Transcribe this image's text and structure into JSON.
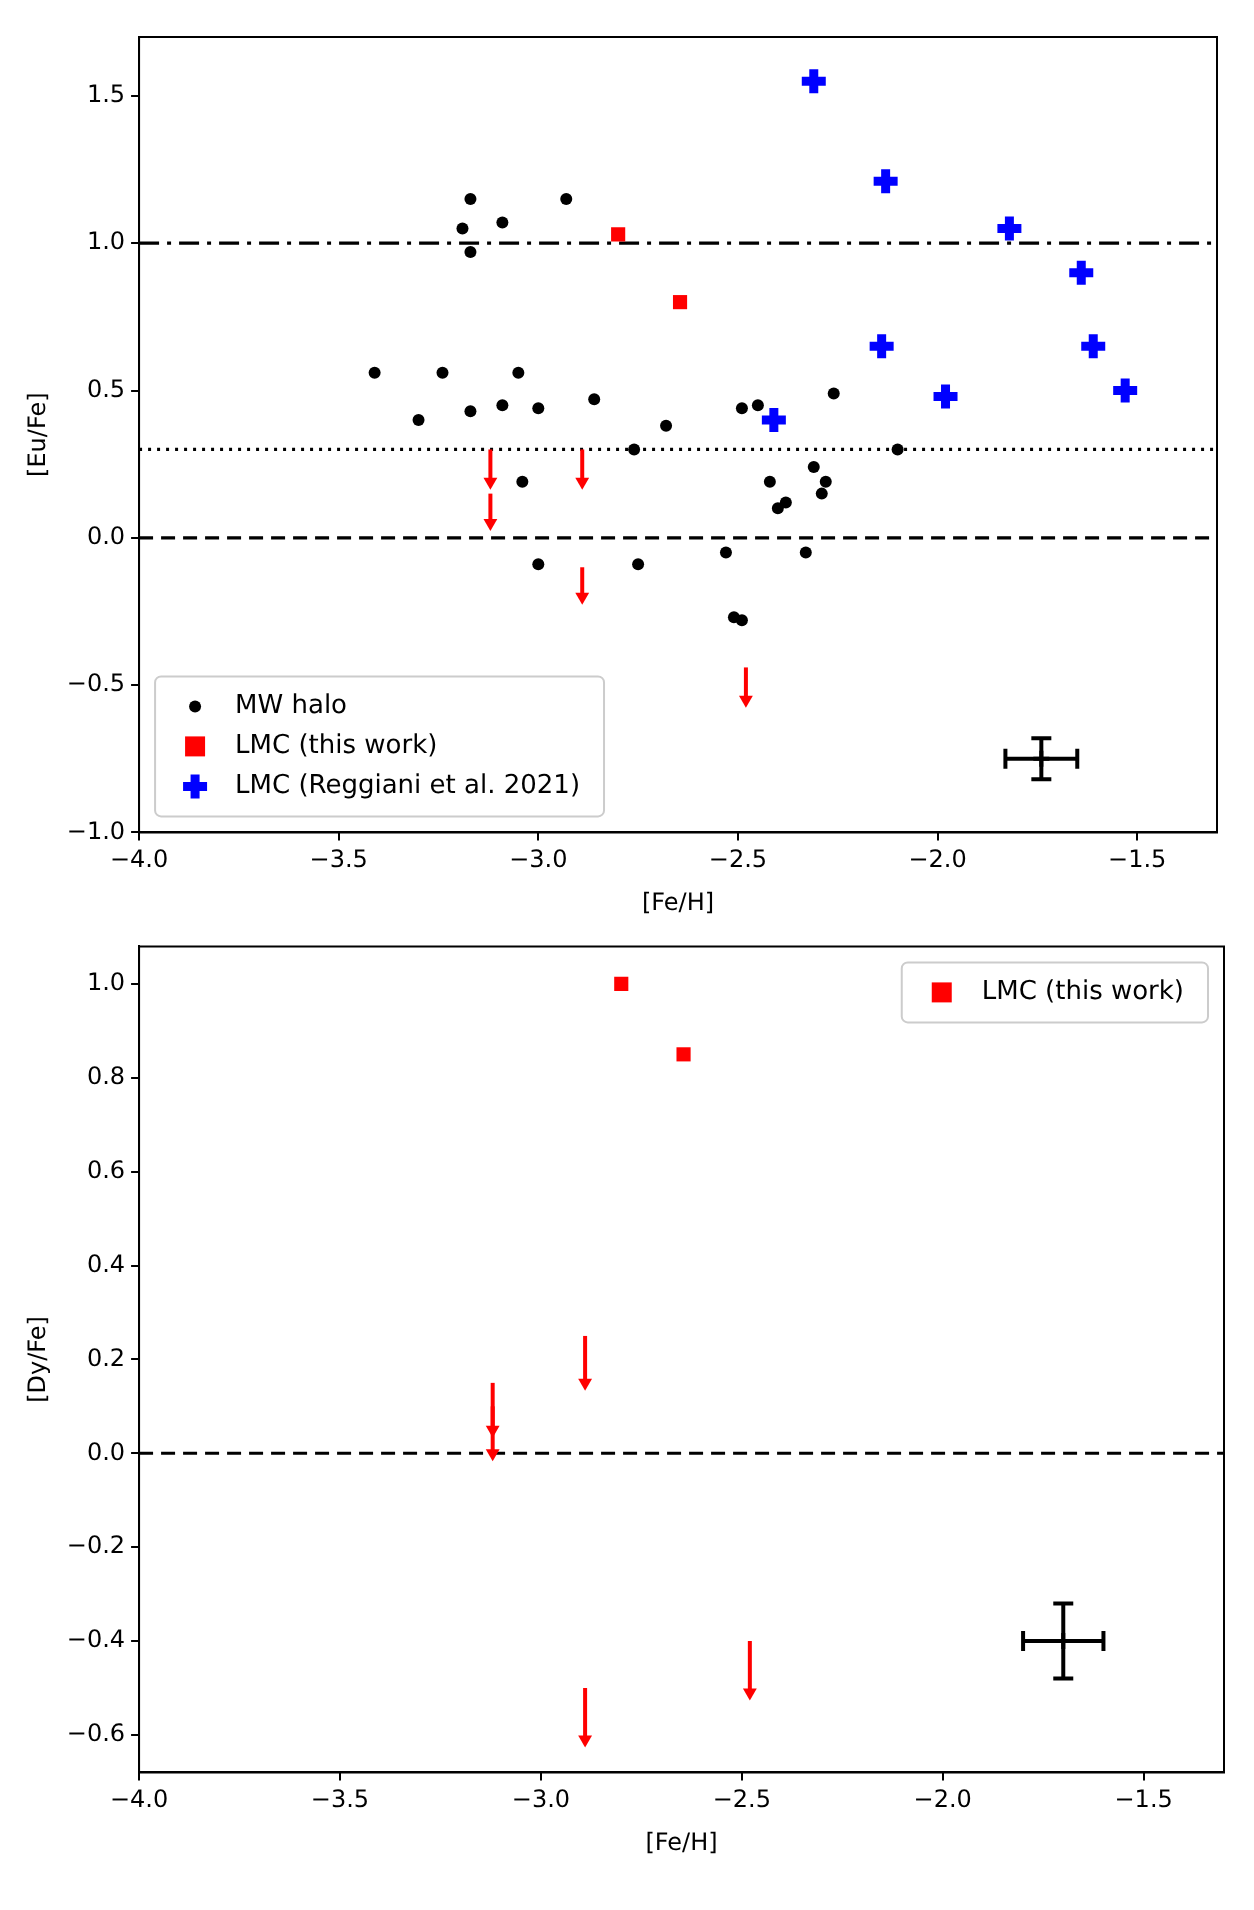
{
  "chart_data": [
    {
      "type": "scatter",
      "xlabel": "[Fe/H]",
      "ylabel": "[Eu/Fe]",
      "xlim": [
        -4.0,
        -1.3
      ],
      "ylim": [
        -1.0,
        1.7
      ],
      "xticks": [
        {
          "value": -4.0,
          "label": "−4.0"
        },
        {
          "value": -3.5,
          "label": "−3.5"
        },
        {
          "value": -3.0,
          "label": "−3.0"
        },
        {
          "value": -2.5,
          "label": "−2.5"
        },
        {
          "value": -2.0,
          "label": "−2.0"
        },
        {
          "value": -1.5,
          "label": "−1.5"
        }
      ],
      "yticks": [
        {
          "value": -1.0,
          "label": "−1.0"
        },
        {
          "value": -0.5,
          "label": "−0.5"
        },
        {
          "value": 0.0,
          "label": "0.0"
        },
        {
          "value": 0.5,
          "label": "0.5"
        },
        {
          "value": 1.0,
          "label": "1.0"
        },
        {
          "value": 1.5,
          "label": "1.5"
        }
      ],
      "legend": "bottom left",
      "ref_lines": [
        {
          "axis": "y",
          "value": 1.0,
          "color": "#000000",
          "line_style": "dashdot"
        },
        {
          "axis": "y",
          "value": 0.3,
          "color": "#000000",
          "line_style": "dotted"
        },
        {
          "axis": "y",
          "value": 0.0,
          "color": "#000000",
          "line_style": "dashed"
        }
      ],
      "series": [
        {
          "name": "MW halo",
          "color": "#000000",
          "marker": "circle",
          "x": [
            -3.41,
            -3.3,
            -3.24,
            -3.17,
            -3.19,
            -3.17,
            -3.17,
            -3.09,
            -3.09,
            -3.05,
            -3.04,
            -3.0,
            -3.0,
            -2.93,
            -2.86,
            -2.76,
            -2.75,
            -2.68,
            -2.53,
            -2.51,
            -2.49,
            -2.49,
            -2.45,
            -2.42,
            -2.4,
            -2.38,
            -2.33,
            -2.31,
            -2.29,
            -2.28,
            -2.26,
            -2.1
          ],
          "values": [
            0.56,
            0.4,
            0.56,
            1.15,
            1.05,
            0.97,
            0.43,
            1.07,
            0.45,
            0.56,
            0.19,
            0.44,
            -0.09,
            1.15,
            0.47,
            0.3,
            -0.09,
            0.38,
            -0.05,
            -0.27,
            -0.28,
            0.44,
            0.45,
            0.19,
            0.1,
            0.12,
            -0.05,
            0.24,
            0.15,
            0.19,
            0.49,
            0.3
          ]
        },
        {
          "name": "LMC (this work)",
          "color": "#ff0000",
          "marker": "square",
          "x": [
            -2.8,
            -2.645
          ],
          "values": [
            1.03,
            0.8
          ]
        },
        {
          "name": "LMC (Reggiani et al. 2021)",
          "color": "#0000ff",
          "marker": "cross",
          "x": [
            -2.31,
            -2.13,
            -1.82,
            -1.64,
            -2.14,
            -1.61,
            -1.53,
            -1.98,
            -2.41
          ],
          "values": [
            1.55,
            1.21,
            1.05,
            0.9,
            0.65,
            0.65,
            0.5,
            0.48,
            0.4
          ]
        },
        {
          "color": "#ff0000",
          "marker": "triangle",
          "x": [
            -3.12,
            -3.12,
            -2.89,
            -2.89,
            -2.48
          ],
          "values": [
            0.19,
            0.05,
            0.19,
            -0.2,
            -0.55
          ],
          "errors": [
            [
              0.19,
              0.3
            ],
            [
              0.05,
              0.15
            ],
            [
              0.19,
              0.3
            ],
            [
              -0.2,
              -0.1
            ],
            [
              -0.55,
              -0.44
            ]
          ]
        },
        {
          "color": "#000000",
          "marker": "cross",
          "x": [
            -1.74
          ],
          "values": [
            -0.75
          ],
          "errors": [
            0.07
          ],
          "xerrors": [
            0.09
          ]
        }
      ]
    },
    {
      "type": "scatter",
      "xlabel": "[Fe/H]",
      "ylabel": "[Dy/Fe]",
      "xlim": [
        -4.0,
        -1.3
      ],
      "ylim": [
        -0.68,
        1.08
      ],
      "xticks": [
        {
          "value": -4.0,
          "label": "−4.0"
        },
        {
          "value": -3.5,
          "label": "−3.5"
        },
        {
          "value": -3.0,
          "label": "−3.0"
        },
        {
          "value": -2.5,
          "label": "−2.5"
        },
        {
          "value": -2.0,
          "label": "−2.0"
        },
        {
          "value": -1.5,
          "label": "−1.5"
        }
      ],
      "yticks": [
        {
          "value": -0.6,
          "label": "−0.6"
        },
        {
          "value": -0.4,
          "label": "−0.4"
        },
        {
          "value": -0.2,
          "label": "−0.2"
        },
        {
          "value": 0.0,
          "label": "0.0"
        },
        {
          "value": 0.2,
          "label": "0.2"
        },
        {
          "value": 0.4,
          "label": "0.4"
        },
        {
          "value": 0.6,
          "label": "0.6"
        },
        {
          "value": 0.8,
          "label": "0.8"
        },
        {
          "value": 1.0,
          "label": "1.0"
        }
      ],
      "legend": "top right",
      "ref_lines": [
        {
          "axis": "y",
          "value": 0.0,
          "color": "#000000",
          "line_style": "dashed"
        }
      ],
      "series": [
        {
          "name": "LMC (this work)",
          "color": "#ff0000",
          "marker": "square",
          "x": [
            -2.8,
            -2.645
          ],
          "values": [
            1.0,
            0.85
          ]
        },
        {
          "color": "#ff0000",
          "marker": "triangle",
          "x": [
            -3.12,
            -3.12,
            -2.89,
            -2.89,
            -2.48
          ],
          "values": [
            0.05,
            0.0,
            0.15,
            -0.61,
            -0.51
          ],
          "errors": [
            [
              0.05,
              0.15
            ],
            [
              0.0,
              0.1
            ],
            [
              0.15,
              0.25
            ],
            [
              -0.61,
              -0.5
            ],
            [
              -0.51,
              -0.4
            ]
          ]
        },
        {
          "color": "#000000",
          "marker": "cross",
          "x": [
            -1.7
          ],
          "values": [
            -0.4
          ],
          "errors": [
            0.08
          ],
          "xerrors": [
            0.1
          ]
        }
      ]
    }
  ]
}
